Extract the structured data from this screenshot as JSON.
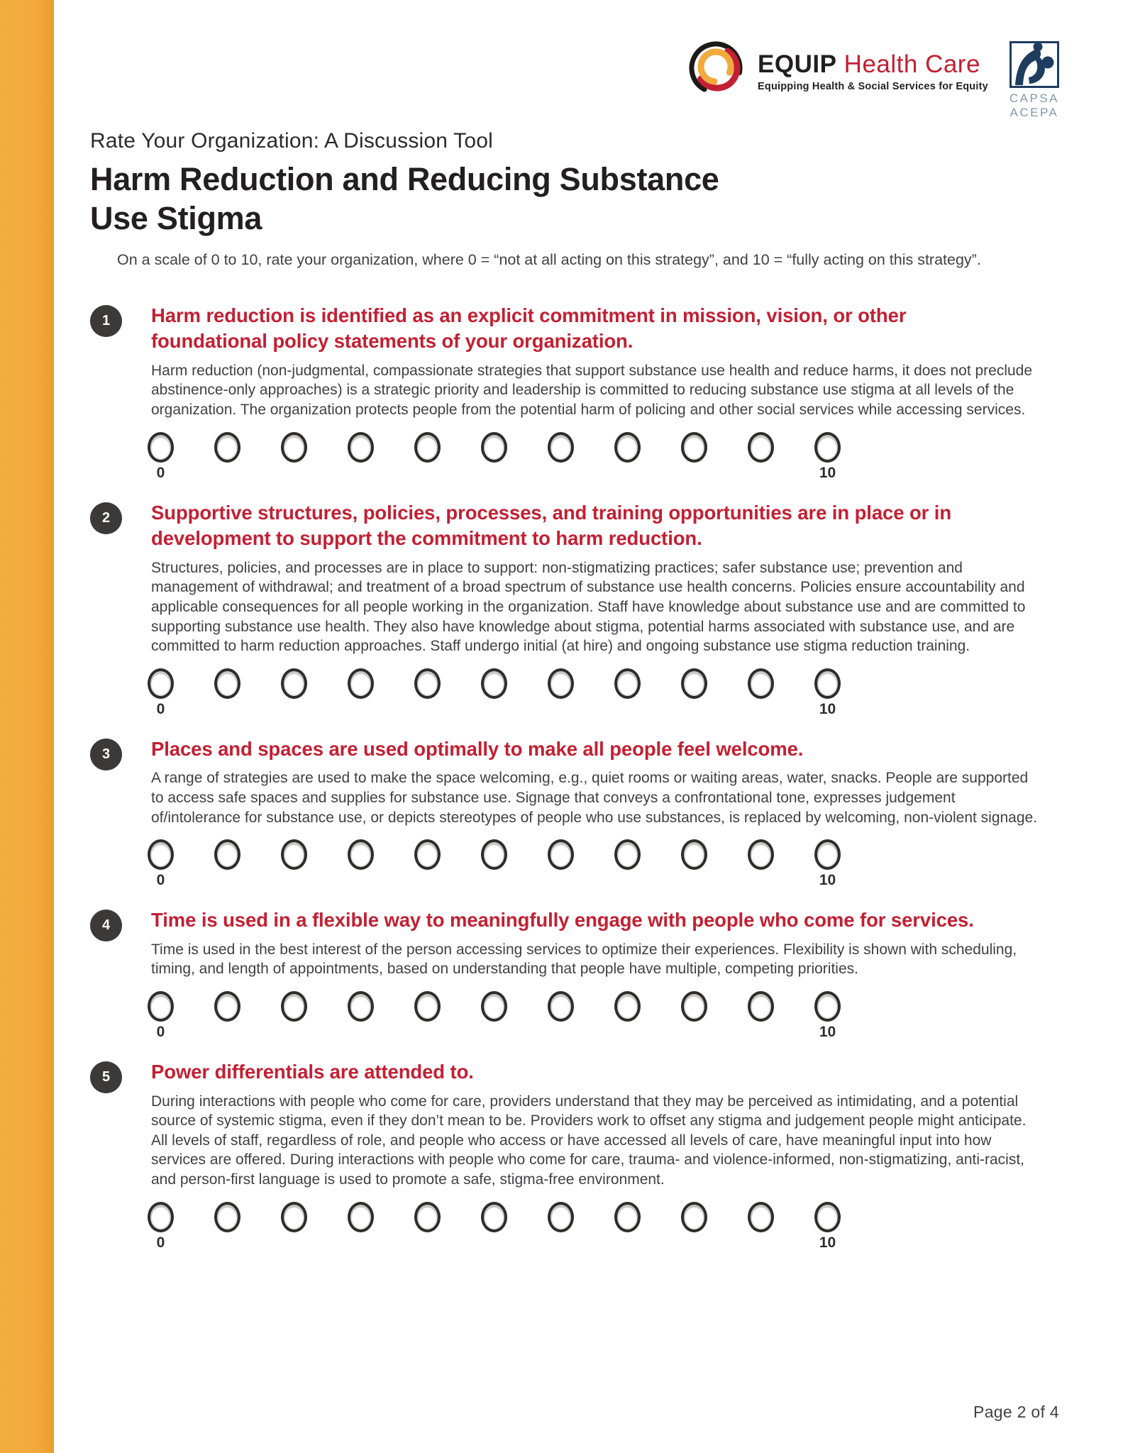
{
  "header": {
    "equip_logo": {
      "icon": "equip-swirl-logo",
      "brand_primary": "EQUIP",
      "brand_secondary": "Health Care",
      "tagline": "Equipping Health & Social Services for Equity"
    },
    "capsa_logo": {
      "icon": "capsa-people-logo",
      "line1": "CAPSA",
      "line2": "ACEPA"
    }
  },
  "document": {
    "eyebrow": "Rate Your Organization: A Discussion Tool",
    "title": "Harm Reduction and Reducing Substance Use Stigma",
    "intro": "On a scale of 0 to 10, rate your organization, where 0 = “not at all acting on this strategy”, and 10 = “fully acting on this strategy”.",
    "page_footer": "Page 2 of 4"
  },
  "scale": {
    "min_label": "0",
    "max_label": "10",
    "options": 11
  },
  "items": [
    {
      "number": "1",
      "heading": "Harm reduction is identified as an explicit commitment in mission, vision, or other foundational policy statements of your organization.",
      "body": "Harm reduction (non-judgmental, compassionate strategies that support substance use health and reduce harms, it does not preclude abstinence-only approaches) is a strategic priority and leadership is committed to reducing substance use stigma at all levels of the organization. The organization protects people from the potential harm of policing and other social services while accessing services."
    },
    {
      "number": "2",
      "heading": "Supportive structures, policies, processes, and training opportunities are in place or in development to support the commitment to harm reduction.",
      "body": "Structures, policies, and processes are in place to support: non-stigmatizing practices; safer substance use; prevention and management of withdrawal; and treatment of a broad spectrum of substance use health concerns. Policies ensure accountability and applicable consequences for all people working in the organization. Staff have knowledge about substance use and are committed to supporting substance use health. They also have knowledge about stigma, potential harms associated with substance use, and are committed to harm reduction approaches. Staff undergo initial (at hire) and ongoing substance use stigma reduction training."
    },
    {
      "number": "3",
      "heading": "Places and spaces are used optimally to make all people feel welcome.",
      "body": "A range of strategies are used to make the space welcoming, e.g., quiet rooms or waiting areas, water, snacks. People are supported to access safe spaces and supplies for substance use. Signage that conveys a confrontational tone, expresses judgement of/intolerance for substance use, or depicts stereotypes of people who use substances, is replaced by welcoming, non-violent signage."
    },
    {
      "number": "4",
      "heading": "Time is used in a flexible way to meaningfully engage with people who come for services.",
      "body": "Time is used in the best interest of the person accessing services to optimize their experiences. Flexibility is shown with scheduling, timing, and length of appointments, based on understanding that people have multiple, competing priorities."
    },
    {
      "number": "5",
      "heading": "Power differentials are attended to.",
      "body": "During interactions with people who come for care, providers understand that they may be perceived as intimidating, and a potential source of systemic stigma, even if they don’t mean to be. Providers work to offset any stigma and judgement people might anticipate. All levels of staff, regardless of role, and people who access or have accessed all levels of care, have meaningful input into how services are offered. During interactions with people who come for care, trauma- and violence-informed, non-stigmatizing, anti-racist, and person-first language is used to promote a safe, stigma-free environment."
    }
  ],
  "colors": {
    "accent_red": "#C22033",
    "sidebar_orange": "#F2A93D",
    "badge_charcoal": "#3B3A39",
    "logo_navy": "#1E3D5F",
    "partner_text_blue": "#7F99AD",
    "text_dark": "#414042",
    "title_black": "#231F20"
  }
}
